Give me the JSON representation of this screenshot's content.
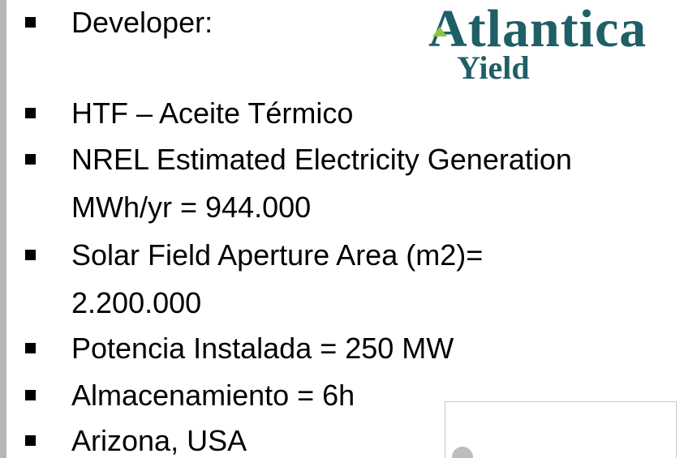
{
  "logo": {
    "name": "Atlantica",
    "sub": "Yield"
  },
  "bullets": [
    [
      "Developer:"
    ],
    [
      "HTF – Aceite Térmico"
    ],
    [
      "NREL Estimated Electricity Generation",
      "MWh/yr = 944.000"
    ],
    [
      "Solar Field Aperture Area (m2)=",
      "2.200.000"
    ],
    [
      "Potencia Instalada = 250 MW"
    ],
    [
      "Almacenamiento = 6h"
    ],
    [
      "Arizona, USA"
    ]
  ]
}
